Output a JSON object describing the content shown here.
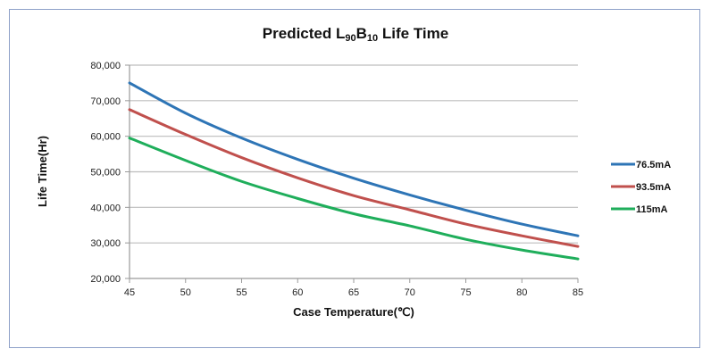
{
  "chart_data": {
    "type": "line",
    "title": {
      "prefix": "Predicted L",
      "sub1": "90",
      "mid": "B",
      "sub2": "10",
      "suffix": " Life Time"
    },
    "xlabel": "Case Temperature(℃)",
    "ylabel": "Life Time(Hr)",
    "xlim": [
      45,
      85
    ],
    "ylim": [
      20000,
      80000
    ],
    "x_ticks": [
      45,
      50,
      55,
      60,
      65,
      70,
      75,
      80,
      85
    ],
    "x_tick_labels": [
      "45",
      "50",
      "55",
      "60",
      "65",
      "70",
      "75",
      "80",
      "85"
    ],
    "y_ticks": [
      20000,
      30000,
      40000,
      50000,
      60000,
      70000,
      80000
    ],
    "y_tick_labels": [
      "20,000",
      "30,000",
      "40,000",
      "50,000",
      "60,000",
      "70,000",
      "80,000"
    ],
    "grid": "horizontal",
    "legend_position": "right",
    "x": [
      45,
      50,
      55,
      60,
      65,
      70,
      75,
      80,
      85
    ],
    "series": [
      {
        "name": "76.5mA",
        "color": "#2E75B6",
        "values": [
          75000,
          66500,
          59500,
          53500,
          48200,
          43500,
          39200,
          35300,
          32000
        ]
      },
      {
        "name": "93.5mA",
        "color": "#C0504D",
        "values": [
          67500,
          60500,
          54000,
          48300,
          43300,
          39300,
          35300,
          32000,
          29000
        ]
      },
      {
        "name": "115mA",
        "color": "#1FAE5B",
        "values": [
          59500,
          53200,
          47300,
          42500,
          38200,
          34800,
          31000,
          28000,
          25500
        ]
      }
    ]
  }
}
